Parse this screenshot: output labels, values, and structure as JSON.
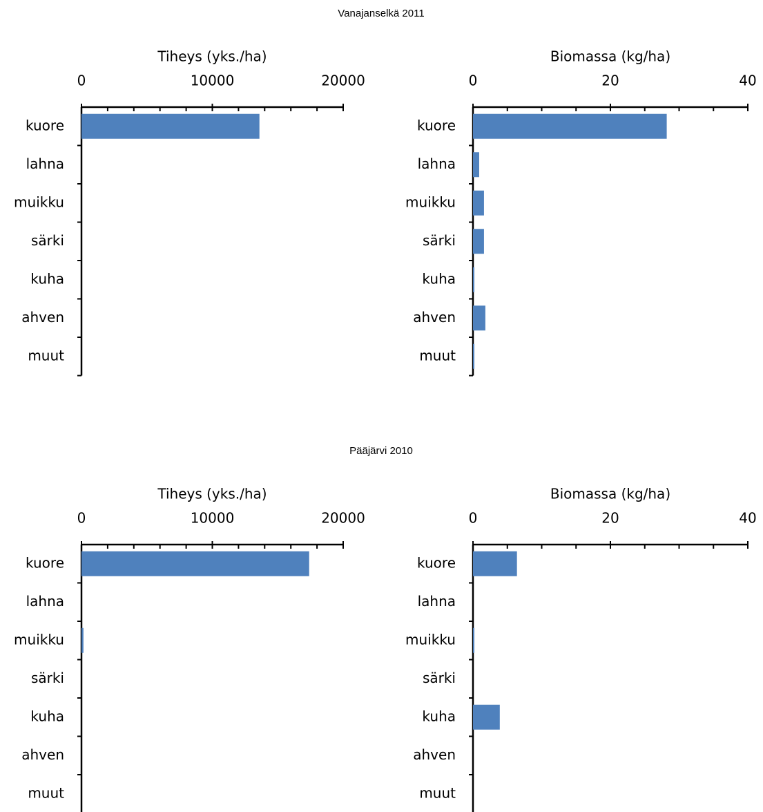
{
  "figure_titles": [
    "Vanajanselkä 2011",
    "Pääjärvi 2010"
  ],
  "chart_data": [
    {
      "type": "bar",
      "orientation": "horizontal",
      "xlabel": "Tiheys (yks./ha)",
      "color": "#4f81bd",
      "categories": [
        "kuore",
        "lahna",
        "muikku",
        "särki",
        "kuha",
        "ahven",
        "muut"
      ],
      "values": [
        13600,
        0,
        0,
        0,
        0,
        0,
        0
      ],
      "xlim": [
        0,
        20000
      ],
      "xticks": [
        0,
        10000,
        20000
      ],
      "xminorticks": [
        2000,
        4000,
        6000,
        8000,
        12000,
        14000,
        16000,
        18000
      ]
    },
    {
      "type": "bar",
      "orientation": "horizontal",
      "xlabel": "Biomassa (kg/ha)",
      "color": "#4f81bd",
      "categories": [
        "kuore",
        "lahna",
        "muikku",
        "särki",
        "kuha",
        "ahven",
        "muut"
      ],
      "values": [
        28.2,
        0.9,
        1.6,
        1.6,
        0.2,
        1.8,
        0.2
      ],
      "xlim": [
        0,
        40
      ],
      "xticks": [
        0,
        20,
        40
      ],
      "xminorticks": [
        5,
        10,
        15,
        25,
        30,
        35
      ]
    },
    {
      "type": "bar",
      "orientation": "horizontal",
      "xlabel": "Tiheys (yks./ha)",
      "color": "#4f81bd",
      "categories": [
        "kuore",
        "lahna",
        "muikku",
        "särki",
        "kuha",
        "ahven",
        "muut"
      ],
      "values": [
        17400,
        0,
        150,
        0,
        0,
        0,
        0
      ],
      "xlim": [
        0,
        20000
      ],
      "xticks": [
        0,
        10000,
        20000
      ],
      "xminorticks": [
        2000,
        4000,
        6000,
        8000,
        12000,
        14000,
        16000,
        18000
      ]
    },
    {
      "type": "bar",
      "orientation": "horizontal",
      "xlabel": "Biomassa (kg/ha)",
      "color": "#4f81bd",
      "categories": [
        "kuore",
        "lahna",
        "muikku",
        "särki",
        "kuha",
        "ahven",
        "muut"
      ],
      "values": [
        6.4,
        0,
        0.2,
        0,
        3.9,
        0,
        0
      ],
      "xlim": [
        0,
        40
      ],
      "xticks": [
        0,
        20,
        40
      ],
      "xminorticks": [
        5,
        10,
        15,
        25,
        30,
        35
      ]
    }
  ]
}
